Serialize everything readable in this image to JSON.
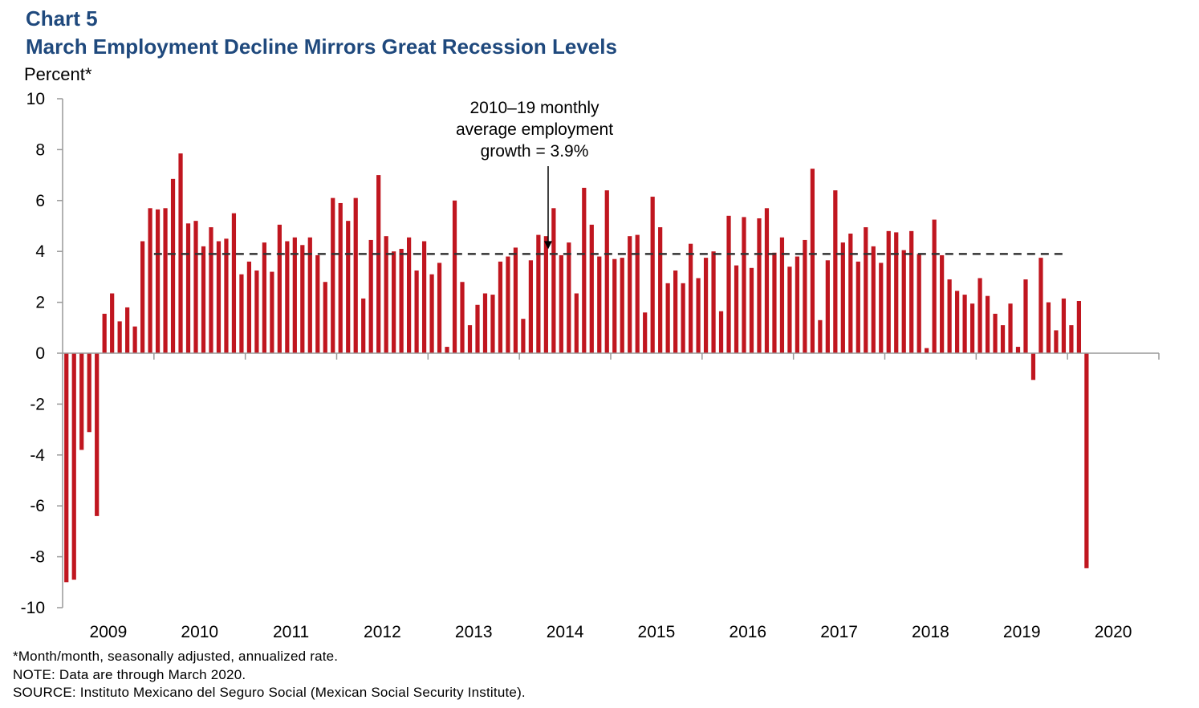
{
  "header": {
    "chart_label": "Chart 5",
    "title": "March Employment Decline Mirrors Great Recession Levels",
    "y_unit": "Percent*"
  },
  "annotation": {
    "lines": [
      "2010–19 monthly",
      "average employment",
      "growth = 3.9%"
    ]
  },
  "footnotes": {
    "note_asterisk": "*Month/month, seasonally adjusted, annualized rate.",
    "note": "NOTE: Data are through March 2020.",
    "source": "SOURCE: Instituto Mexicano del Seguro Social (Mexican Social Security Institute)."
  },
  "colors": {
    "bar": "#c0161f",
    "axis": "#999999",
    "title": "#1f497d",
    "average_line": "#333333"
  },
  "chart_data": {
    "type": "bar",
    "x_start": "2009-01",
    "x_end": "2020-03",
    "frequency": "monthly",
    "ylabel": "Percent*",
    "ylim": [
      -10,
      10
    ],
    "y_ticks": [
      10,
      8,
      6,
      4,
      2,
      0,
      -2,
      -4,
      -6,
      -8,
      -10
    ],
    "x_tick_labels": [
      "2009",
      "2010",
      "2011",
      "2012",
      "2013",
      "2014",
      "2015",
      "2016",
      "2017",
      "2018",
      "2019",
      "2020"
    ],
    "values": [
      -9.0,
      -8.9,
      -3.8,
      -3.1,
      -6.4,
      1.55,
      2.35,
      1.25,
      1.8,
      1.05,
      4.4,
      5.7,
      5.65,
      5.7,
      6.85,
      7.85,
      5.1,
      5.2,
      4.2,
      4.95,
      4.4,
      4.5,
      5.5,
      3.1,
      3.6,
      3.25,
      4.35,
      3.2,
      5.05,
      4.4,
      4.55,
      4.25,
      4.55,
      3.85,
      2.8,
      6.1,
      5.9,
      5.2,
      6.1,
      2.15,
      4.45,
      7.0,
      4.6,
      4.0,
      4.1,
      4.55,
      3.25,
      4.4,
      3.1,
      3.55,
      0.25,
      6.0,
      2.8,
      1.1,
      1.9,
      2.35,
      2.3,
      3.6,
      3.8,
      4.15,
      1.35,
      3.65,
      4.65,
      4.6,
      5.7,
      3.85,
      4.35,
      2.35,
      6.5,
      5.05,
      3.8,
      6.4,
      3.7,
      3.75,
      4.6,
      4.65,
      1.6,
      6.15,
      4.95,
      2.75,
      3.25,
      2.75,
      4.3,
      2.95,
      3.75,
      4.0,
      1.65,
      5.4,
      3.45,
      5.35,
      3.35,
      5.3,
      5.7,
      3.95,
      4.55,
      3.4,
      3.8,
      4.45,
      7.25,
      1.3,
      3.65,
      6.4,
      4.35,
      4.7,
      3.6,
      4.95,
      4.2,
      3.55,
      4.8,
      4.75,
      4.05,
      4.8,
      3.9,
      0.2,
      5.25,
      3.85,
      2.9,
      2.45,
      2.3,
      1.95,
      2.95,
      2.25,
      1.55,
      1.1,
      1.95,
      0.25,
      2.9,
      -1.05,
      3.75,
      2.0,
      0.9,
      2.15,
      1.1,
      2.05,
      -8.45
    ],
    "average": {
      "value": 3.9,
      "start": "2010-01",
      "end": "2019-12"
    }
  }
}
